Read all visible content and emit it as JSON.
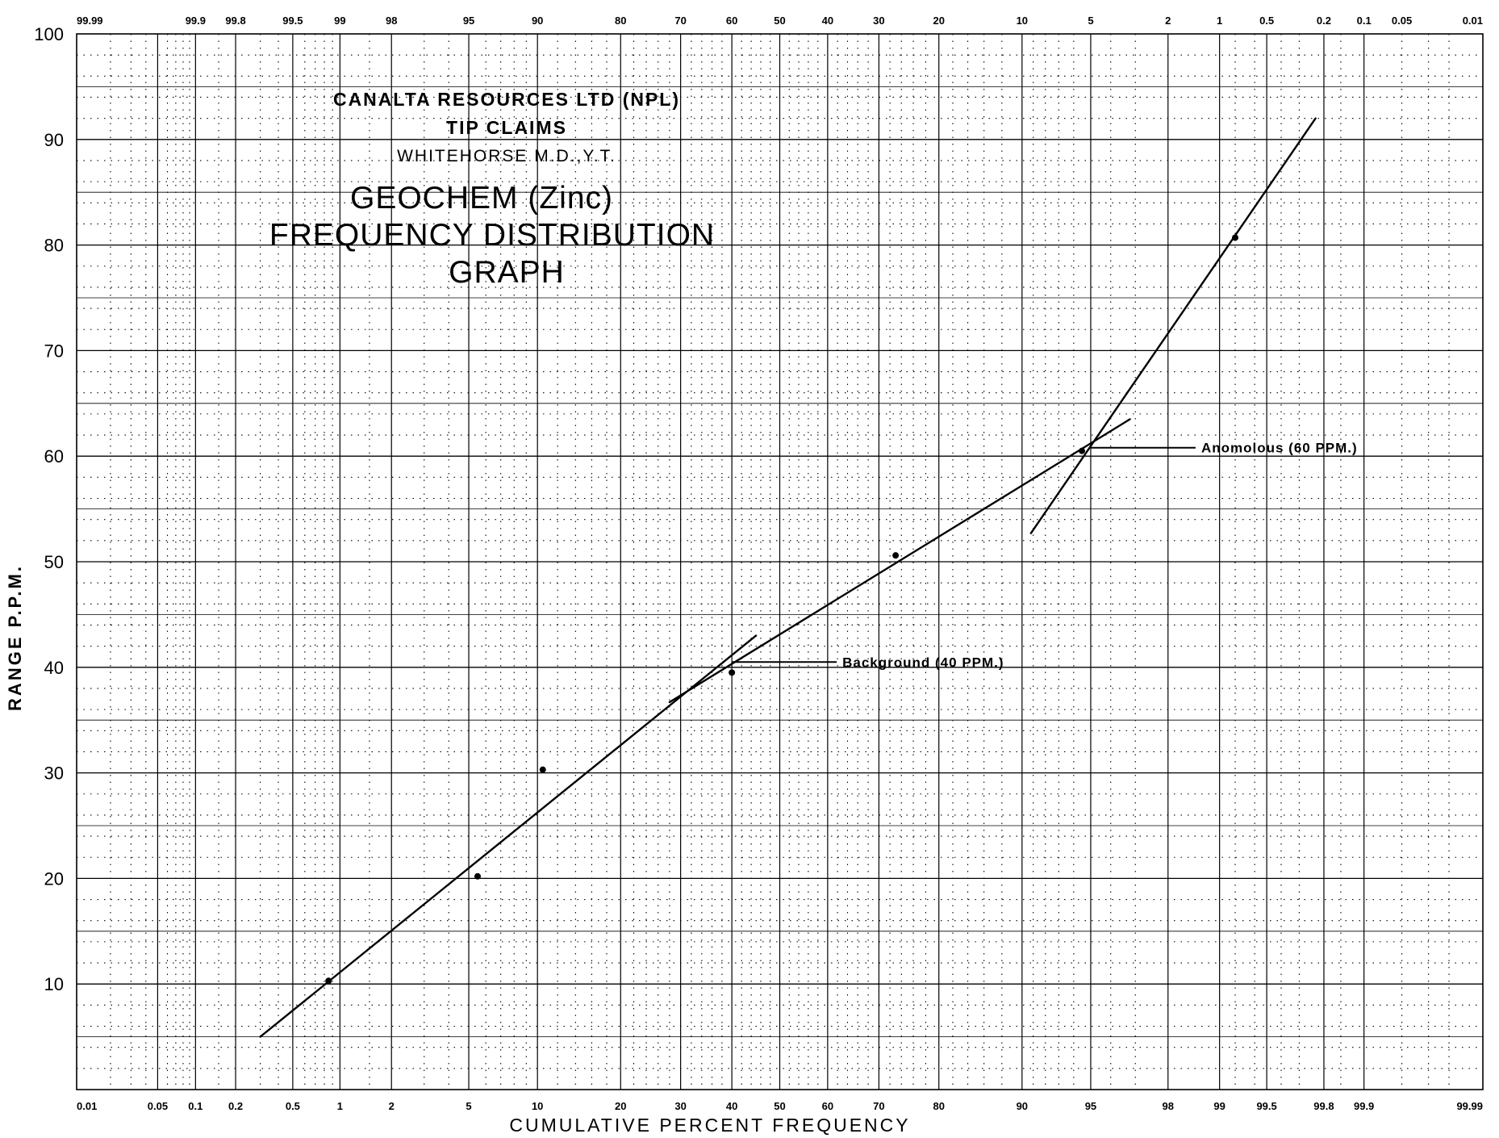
{
  "chart_data": {
    "type": "scatter",
    "title_lines": [
      "CANALTA RESOURCES LTD (NPL)",
      "TIP CLAIMS",
      "WHITEHORSE M.D.,Y.T.",
      "GEOCHEM (Zinc)",
      "FREQUENCY DISTRIBUTION",
      "GRAPH"
    ],
    "xlabel": "CUMULATIVE PERCENT FREQUENCY",
    "ylabel": "RANGE P.P.M.",
    "x_scale": "probability",
    "xlim": [
      0.01,
      99.99
    ],
    "ylim": [
      0,
      100
    ],
    "x_ticks_bottom": [
      "0.01",
      "0.05",
      "0.1",
      "0.2",
      "0.5",
      "1",
      "2",
      "5",
      "10",
      "20",
      "30",
      "40",
      "50",
      "60",
      "70",
      "80",
      "90",
      "95",
      "98",
      "99",
      "99.5",
      "99.8",
      "99.9",
      "99.99"
    ],
    "x_ticks_top": [
      "99.99",
      "99.9",
      "99.8",
      "99.5",
      "99",
      "98",
      "95",
      "90",
      "80",
      "70",
      "60",
      "50",
      "40",
      "30",
      "20",
      "10",
      "5",
      "2",
      "1",
      "0.5",
      "0.2",
      "0.1",
      "0.05",
      "0.01"
    ],
    "y_ticks": [
      "10",
      "20",
      "30",
      "40",
      "50",
      "60",
      "70",
      "80",
      "90",
      "100"
    ],
    "grid": true,
    "points": [
      {
        "x": 0.85,
        "y": 10.3
      },
      {
        "x": 5.5,
        "y": 20.2
      },
      {
        "x": 10.5,
        "y": 30.3
      },
      {
        "x": 40,
        "y": 39.5
      },
      {
        "x": 73,
        "y": 50.6
      },
      {
        "x": 94.5,
        "y": 60.5
      },
      {
        "x": 99.2,
        "y": 80.7
      }
    ],
    "lines": [
      {
        "from": {
          "x": 0.3,
          "y": 5.0
        },
        "to": {
          "x": 45,
          "y": 43.0
        }
      },
      {
        "from": {
          "x": 28,
          "y": 36.7
        },
        "to": {
          "x": 96.8,
          "y": 63.5
        }
      },
      {
        "from": {
          "x": 90.8,
          "y": 52.7
        },
        "to": {
          "x": 99.77,
          "y": 92.0
        }
      }
    ],
    "annotations": [
      {
        "label": "Background (40 PPM.)",
        "x": 40,
        "y": 40.5
      },
      {
        "label": "Anomolous (60 PPM.)",
        "x": 95,
        "y": 60.8
      }
    ]
  }
}
